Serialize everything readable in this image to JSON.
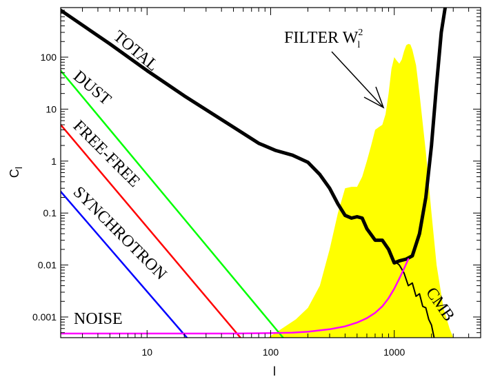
{
  "chart_data": {
    "type": "line",
    "title": "",
    "xlabel": "l",
    "ylabel": "C",
    "ylabel_subscript": "l",
    "xscale": "log",
    "yscale": "log",
    "xlim": [
      2,
      5000
    ],
    "ylim": [
      0.0004,
      900
    ],
    "grid": false,
    "legend": "none",
    "x_ticks": [
      {
        "value": 10,
        "label": "10"
      },
      {
        "value": 100,
        "label": "100"
      },
      {
        "value": 1000,
        "label": "1000"
      }
    ],
    "y_ticks": [
      {
        "value": 0.001,
        "label": "0.001"
      },
      {
        "value": 0.01,
        "label": "0.01"
      },
      {
        "value": 0.1,
        "label": "0.1"
      },
      {
        "value": 1,
        "label": "1"
      },
      {
        "value": 10,
        "label": "10"
      },
      {
        "value": 100,
        "label": "100"
      }
    ],
    "series": [
      {
        "key": "total",
        "color": "#000000",
        "width": 5,
        "x": [
          2,
          5,
          10,
          20,
          50,
          80,
          110,
          150,
          200,
          250,
          300,
          350,
          400,
          450,
          500,
          550,
          600,
          700,
          800,
          900,
          1000,
          1100,
          1250,
          1400,
          1600,
          1800,
          2000,
          2200,
          2400,
          2600
        ],
        "y": [
          800,
          180,
          55,
          18,
          4.5,
          2.2,
          1.6,
          1.3,
          0.95,
          0.55,
          0.3,
          0.15,
          0.09,
          0.08,
          0.085,
          0.08,
          0.05,
          0.03,
          0.03,
          0.02,
          0.011,
          0.012,
          0.013,
          0.015,
          0.04,
          0.2,
          2,
          30,
          300,
          1000
        ]
      },
      {
        "key": "total-cmb",
        "color": "#000000",
        "width": 2,
        "x": [
          1000,
          1100,
          1200,
          1300,
          1400,
          1500,
          1600,
          1700,
          1800,
          1900,
          2000,
          2100
        ],
        "y": [
          0.012,
          0.01,
          0.007,
          0.004,
          0.0045,
          0.0025,
          0.0028,
          0.0016,
          0.0015,
          0.0009,
          0.0007,
          0.0004
        ]
      },
      {
        "key": "dust",
        "color": "#00ff00",
        "width": 2.5,
        "x": [
          2,
          126
        ],
        "y": [
          55,
          0.0004
        ]
      },
      {
        "key": "free-free",
        "color": "#ff0000",
        "width": 2.5,
        "x": [
          2,
          57
        ],
        "y": [
          5,
          0.0004
        ]
      },
      {
        "key": "synchrotron",
        "color": "#0000ff",
        "width": 2.5,
        "x": [
          2,
          21
        ],
        "y": [
          0.26,
          0.0004
        ]
      },
      {
        "key": "noise",
        "color": "#ff00ff",
        "width": 2.5,
        "x": [
          2,
          50,
          100,
          150,
          200,
          300,
          400,
          500,
          600,
          700,
          800,
          900,
          1000,
          1100,
          1200,
          1300
        ],
        "y": [
          0.00048,
          0.00048,
          0.00049,
          0.0005,
          0.00052,
          0.00058,
          0.00066,
          0.00078,
          0.00095,
          0.0012,
          0.0016,
          0.0023,
          0.0035,
          0.0055,
          0.0085,
          0.013
        ]
      }
    ],
    "filter_area": {
      "key": "filter",
      "color": "#ffff00",
      "x": [
        95,
        110,
        130,
        160,
        200,
        250,
        300,
        350,
        400,
        450,
        500,
        550,
        600,
        650,
        700,
        750,
        800,
        850,
        900,
        950,
        1000,
        1050,
        1100,
        1150,
        1200,
        1250,
        1300,
        1350,
        1400,
        1500,
        1600,
        1800,
        2000,
        2200,
        2500,
        2800,
        3000
      ],
      "y": [
        0.0004,
        0.0005,
        0.00065,
        0.0009,
        0.0015,
        0.004,
        0.02,
        0.1,
        0.3,
        0.32,
        0.32,
        0.5,
        1.0,
        2,
        4,
        4.5,
        5,
        8,
        20,
        60,
        100,
        85,
        75,
        90,
        130,
        170,
        180,
        175,
        140,
        70,
        20,
        1.5,
        0.1,
        0.01,
        0.0015,
        0.0006,
        0.0004
      ]
    },
    "annotations": [
      {
        "key": "total",
        "text": "TOTAL"
      },
      {
        "key": "dust",
        "text": "DUST"
      },
      {
        "key": "free-free",
        "text": "FREE-FREE"
      },
      {
        "key": "synchrotron",
        "text": "SYNCHROTRON"
      },
      {
        "key": "noise",
        "text": "NOISE"
      },
      {
        "key": "cmb",
        "text": "CMB"
      },
      {
        "key": "filter",
        "text": "FILTER W",
        "superscript": "2",
        "subscript": "l"
      }
    ]
  }
}
